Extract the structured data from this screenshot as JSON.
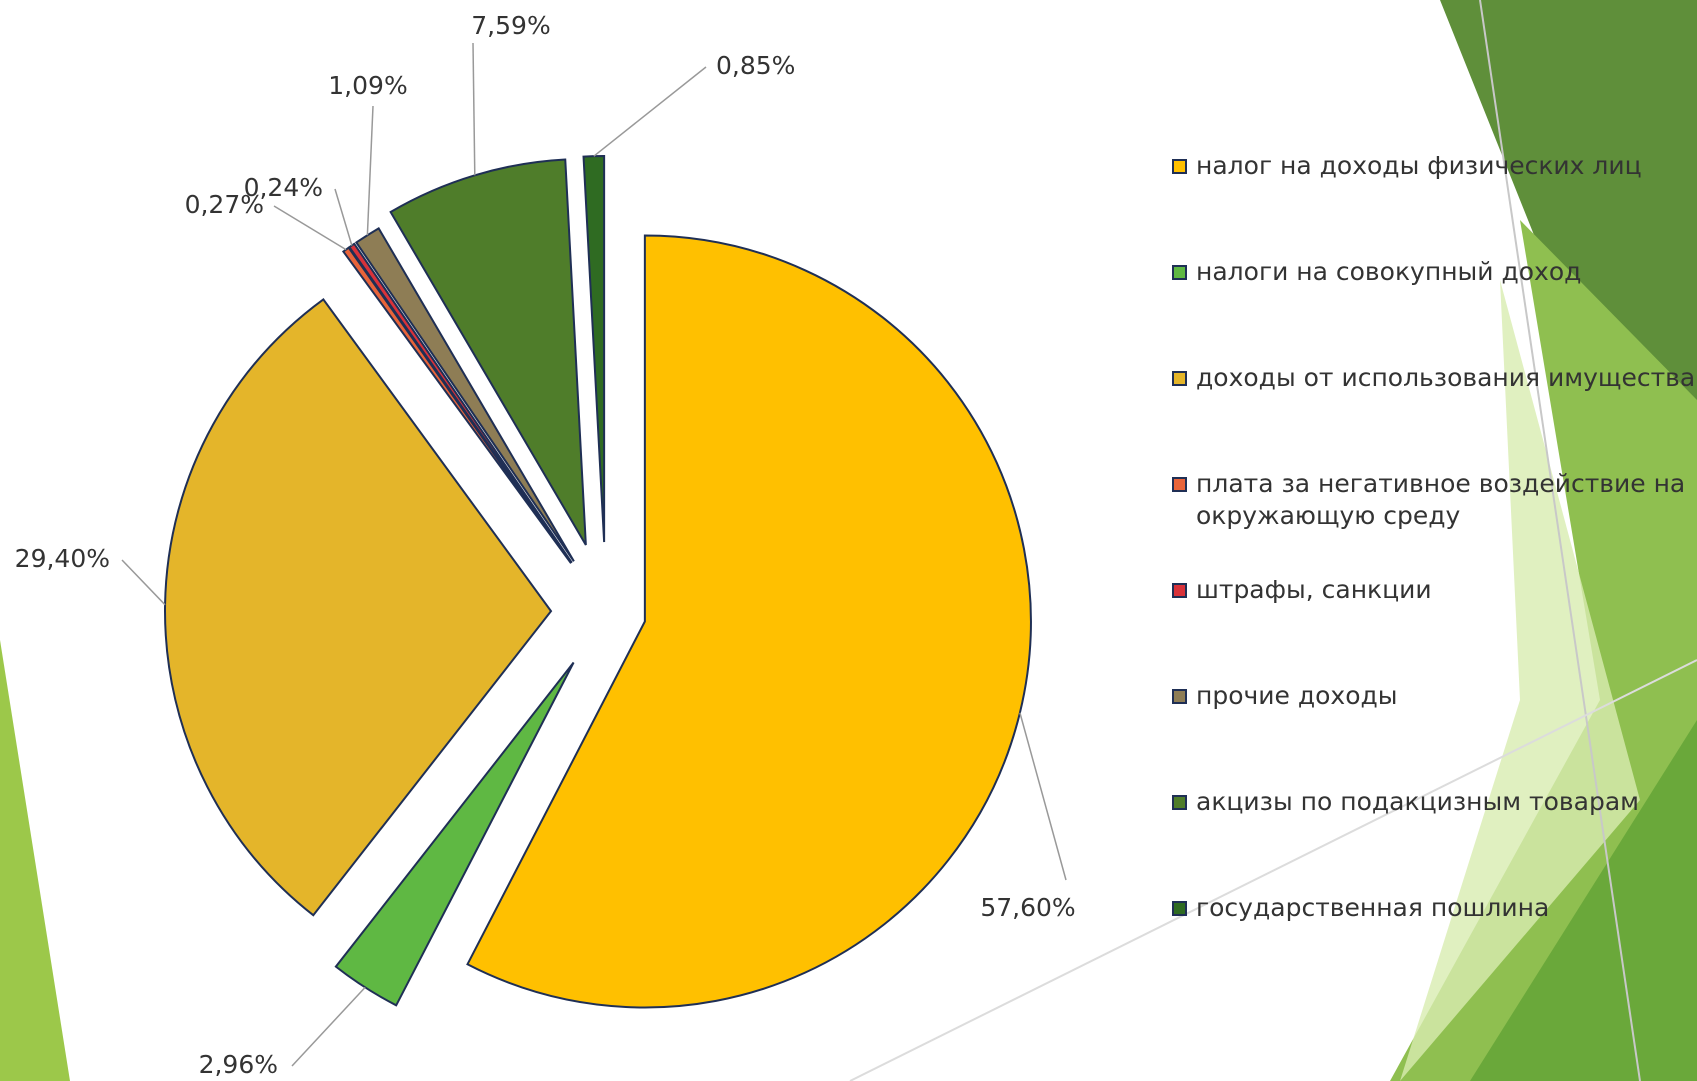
{
  "chart_data": {
    "type": "pie",
    "categories": [
      "налог на доходы физических лиц",
      "налоги на совокупный доход",
      "доходы от использования имущества",
      "плата за негативное воздействие на окружающую среду",
      "штрафы, санкции",
      "прочие доходы",
      "акцизы по подакцизным товарам",
      "государственная пошлина"
    ],
    "values": [
      57.6,
      2.96,
      29.4,
      0.27,
      0.24,
      1.09,
      7.59,
      0.85
    ],
    "value_labels": [
      "57,60%",
      "2,96%",
      "29,40%",
      "0,27%",
      "0,24%",
      "1,09%",
      "7,59%",
      "0,85%"
    ],
    "colors": [
      "#ffc000",
      "#5fb843",
      "#e4b52a",
      "#e8643a",
      "#d8323a",
      "#8e7d55",
      "#4f7d2a",
      "#2f6b22"
    ]
  }
}
